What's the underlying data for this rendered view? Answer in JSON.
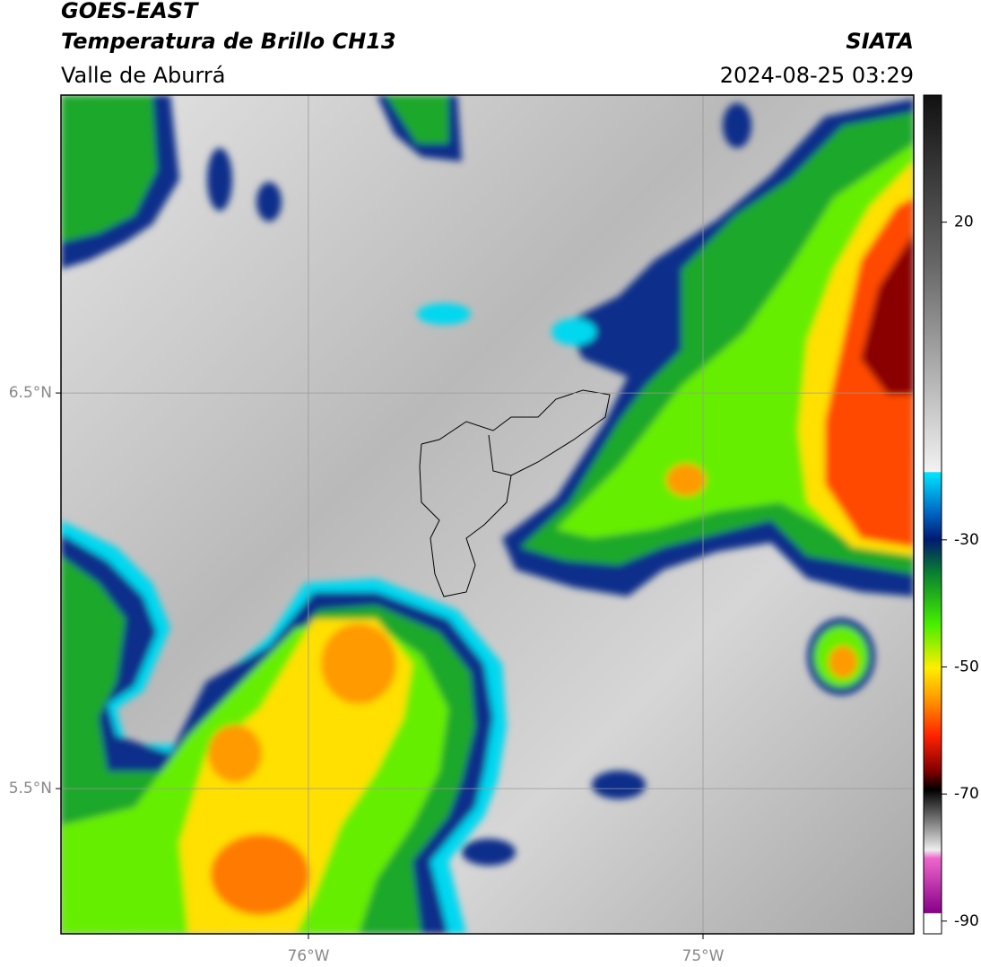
{
  "header": {
    "title": "GOES-EAST",
    "subtitle": "Temperatura de Brillo CH13",
    "region": "Valle de Aburrá",
    "source": "SIATA",
    "datetime": "2024-08-25 03:29"
  },
  "map": {
    "xlim": [
      -76.627,
      -74.466
    ],
    "ylim": [
      5.133,
      7.253
    ],
    "xticks": [
      {
        "value": -76,
        "label": "76°W"
      },
      {
        "value": -75,
        "label": "75°W"
      }
    ],
    "yticks": [
      {
        "value": 6.5,
        "label": "6.5°N"
      },
      {
        "value": 5.5,
        "label": "5.5°N"
      }
    ]
  },
  "colorbar": {
    "range": [
      -92,
      40
    ],
    "ticks": [
      20,
      -30,
      -50,
      -70,
      -90
    ]
  }
}
